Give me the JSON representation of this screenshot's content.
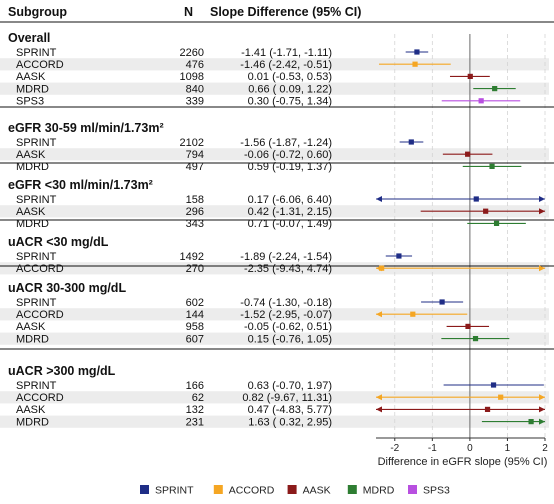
{
  "header": {
    "subgroup": "Subgroup",
    "n": "N",
    "slope": "Slope Difference (95% CI)"
  },
  "colors": {
    "SPRINT": "#1f2d86",
    "ACCORD": "#f5a623",
    "AASK": "#8b1a1a",
    "MDRD": "#2e7d32",
    "SPS3": "#b84fe0"
  },
  "chart_data": {
    "type": "forest",
    "xlabel": "Difference in eGFR slope (95% CI)",
    "xlim": [
      -2.5,
      2
    ],
    "xticks": [
      -2,
      -1,
      0,
      1,
      2
    ],
    "reference_line": 0,
    "groups": [
      {
        "label": "Overall",
        "rows": [
          {
            "study": "SPRINT",
            "n": "2260",
            "ci": "-1.41 (-1.71, -1.11)",
            "est": -1.41,
            "lo": -1.71,
            "hi": -1.11
          },
          {
            "study": "ACCORD",
            "n": "476",
            "ci": "-1.46 (-2.42, -0.51)",
            "est": -1.46,
            "lo": -2.42,
            "hi": -0.51
          },
          {
            "study": "AASK",
            "n": "1098",
            "ci": "0.01 (-0.53, 0.53)",
            "est": 0.01,
            "lo": -0.53,
            "hi": 0.53
          },
          {
            "study": "MDRD",
            "n": "840",
            "ci": "0.66 ( 0.09, 1.22)",
            "est": 0.66,
            "lo": 0.09,
            "hi": 1.22
          },
          {
            "study": "SPS3",
            "n": "339",
            "ci": "0.30 (-0.75, 1.34)",
            "est": 0.3,
            "lo": -0.75,
            "hi": 1.34
          }
        ]
      },
      {
        "label": "eGFR 30-59 ml/min/1.73m²",
        "rows": [
          {
            "study": "SPRINT",
            "n": "2102",
            "ci": "-1.56 (-1.87, -1.24)",
            "est": -1.56,
            "lo": -1.87,
            "hi": -1.24
          },
          {
            "study": "AASK",
            "n": "794",
            "ci": "-0.06 (-0.72, 0.60)",
            "est": -0.06,
            "lo": -0.72,
            "hi": 0.6
          },
          {
            "study": "MDRD",
            "n": "497",
            "ci": "0.59 (-0.19, 1.37)",
            "est": 0.59,
            "lo": -0.19,
            "hi": 1.37
          }
        ]
      },
      {
        "label": "eGFR <30 ml/min/1.73m²",
        "rows": [
          {
            "study": "SPRINT",
            "n": "158",
            "ci": "0.17 (-6.06, 6.40)",
            "est": 0.17,
            "lo": -6.06,
            "hi": 6.4
          },
          {
            "study": "AASK",
            "n": "296",
            "ci": "0.42 (-1.31, 2.15)",
            "est": 0.42,
            "lo": -1.31,
            "hi": 2.15
          },
          {
            "study": "MDRD",
            "n": "343",
            "ci": "0.71 (-0.07, 1.49)",
            "est": 0.71,
            "lo": -0.07,
            "hi": 1.49
          }
        ]
      },
      {
        "label": "uACR <30 mg/dL",
        "rows": [
          {
            "study": "SPRINT",
            "n": "1492",
            "ci": "-1.89 (-2.24, -1.54)",
            "est": -1.89,
            "lo": -2.24,
            "hi": -1.54
          },
          {
            "study": "ACCORD",
            "n": "270",
            "ci": "-2.35 (-9.43, 4.74)",
            "est": -2.35,
            "lo": -9.43,
            "hi": 4.74
          }
        ]
      },
      {
        "label": "uACR 30-300 mg/dL",
        "rows": [
          {
            "study": "SPRINT",
            "n": "602",
            "ci": "-0.74 (-1.30, -0.18)",
            "est": -0.74,
            "lo": -1.3,
            "hi": -0.18
          },
          {
            "study": "ACCORD",
            "n": "144",
            "ci": "-1.52 (-2.95, -0.07)",
            "est": -1.52,
            "lo": -2.95,
            "hi": -0.07
          },
          {
            "study": "AASK",
            "n": "958",
            "ci": "-0.05 (-0.62, 0.51)",
            "est": -0.05,
            "lo": -0.62,
            "hi": 0.51
          },
          {
            "study": "MDRD",
            "n": "607",
            "ci": "0.15 (-0.76, 1.05)",
            "est": 0.15,
            "lo": -0.76,
            "hi": 1.05
          }
        ]
      },
      {
        "label": "uACR >300 mg/dL",
        "rows": [
          {
            "study": "SPRINT",
            "n": "166",
            "ci": "0.63 (-0.70, 1.97)",
            "est": 0.63,
            "lo": -0.7,
            "hi": 1.97
          },
          {
            "study": "ACCORD",
            "n": "62",
            "ci": "0.82 (-9.67, 11.31)",
            "est": 0.82,
            "lo": -9.67,
            "hi": 11.31
          },
          {
            "study": "AASK",
            "n": "132",
            "ci": "0.47 (-4.83, 5.77)",
            "est": 0.47,
            "lo": -4.83,
            "hi": 5.77
          },
          {
            "study": "MDRD",
            "n": "231",
            "ci": "1.63 ( 0.32, 2.95)",
            "est": 1.63,
            "lo": 0.32,
            "hi": 2.95
          }
        ]
      }
    ],
    "legend": [
      "SPRINT",
      "ACCORD",
      "AASK",
      "MDRD",
      "SPS3"
    ],
    "legend_position": "bottom"
  }
}
